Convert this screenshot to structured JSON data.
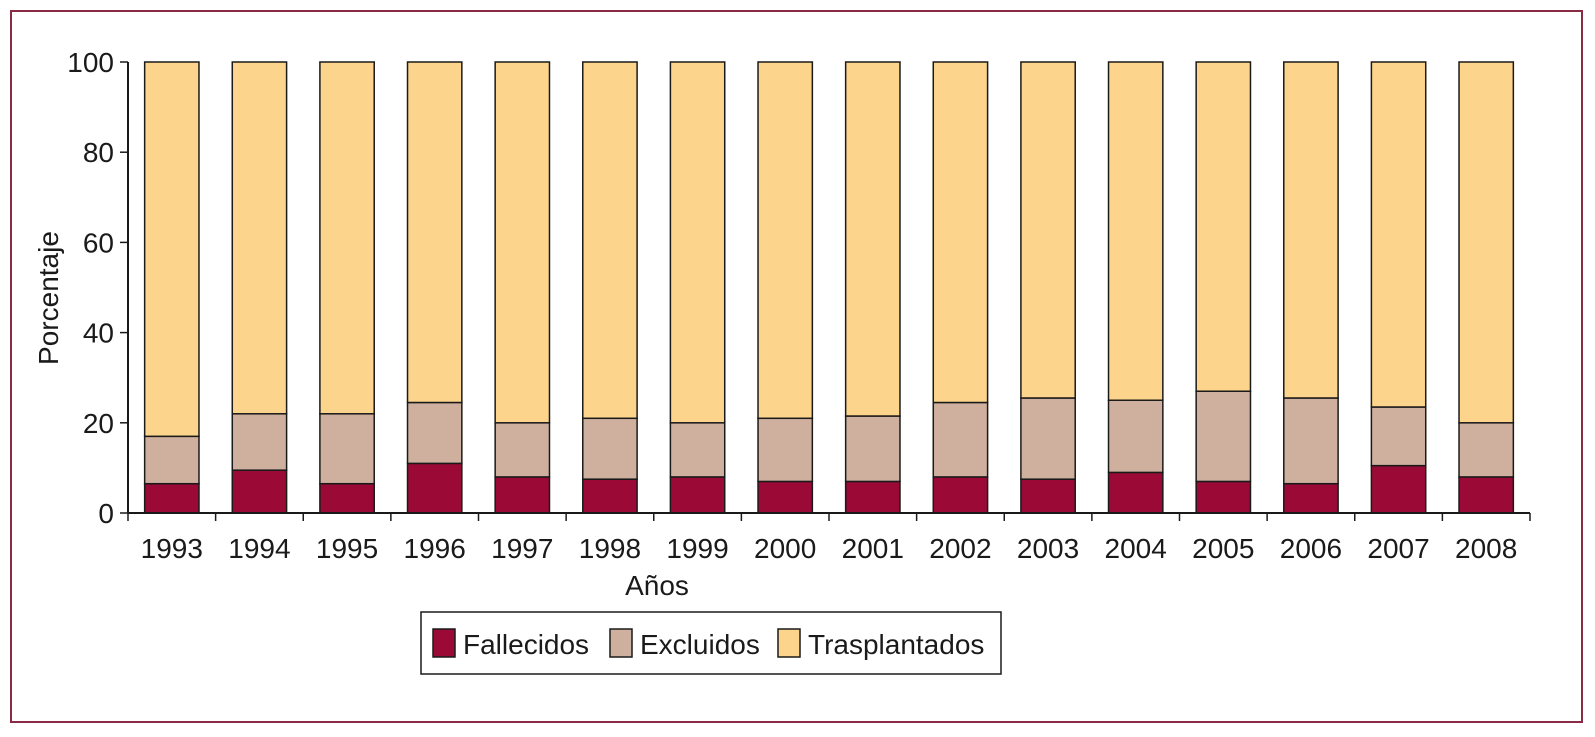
{
  "chart_data": {
    "type": "bar",
    "stacked": true,
    "categories": [
      "1993",
      "1994",
      "1995",
      "1996",
      "1997",
      "1998",
      "1999",
      "2000",
      "2001",
      "2002",
      "2003",
      "2004",
      "2005",
      "2006",
      "2007",
      "2008"
    ],
    "series": [
      {
        "name": "Fallecidos",
        "color": "#9b0a36",
        "values": [
          6.5,
          9.5,
          6.5,
          11,
          8,
          7.5,
          8,
          7,
          7,
          8,
          7.5,
          9,
          7,
          6.5,
          10.5,
          8
        ]
      },
      {
        "name": "Excluidos",
        "color": "#cfb09e",
        "values": [
          10.5,
          12.5,
          15.5,
          13.5,
          12,
          13.5,
          12,
          14,
          14.5,
          16.5,
          18,
          16,
          20,
          19,
          13,
          12
        ]
      },
      {
        "name": "Trasplantados",
        "color": "#fdd48b",
        "values": [
          83,
          78,
          78,
          75.5,
          80,
          79,
          80,
          79,
          78.5,
          75.5,
          74.5,
          75,
          73,
          74.5,
          76.5,
          80
        ]
      }
    ],
    "xlabel": "Años",
    "ylabel": "Porcentaje",
    "ylim": [
      0,
      100
    ],
    "yticks": [
      0,
      20,
      40,
      60,
      80,
      100
    ],
    "grid": false,
    "legend_position": "bottom"
  }
}
